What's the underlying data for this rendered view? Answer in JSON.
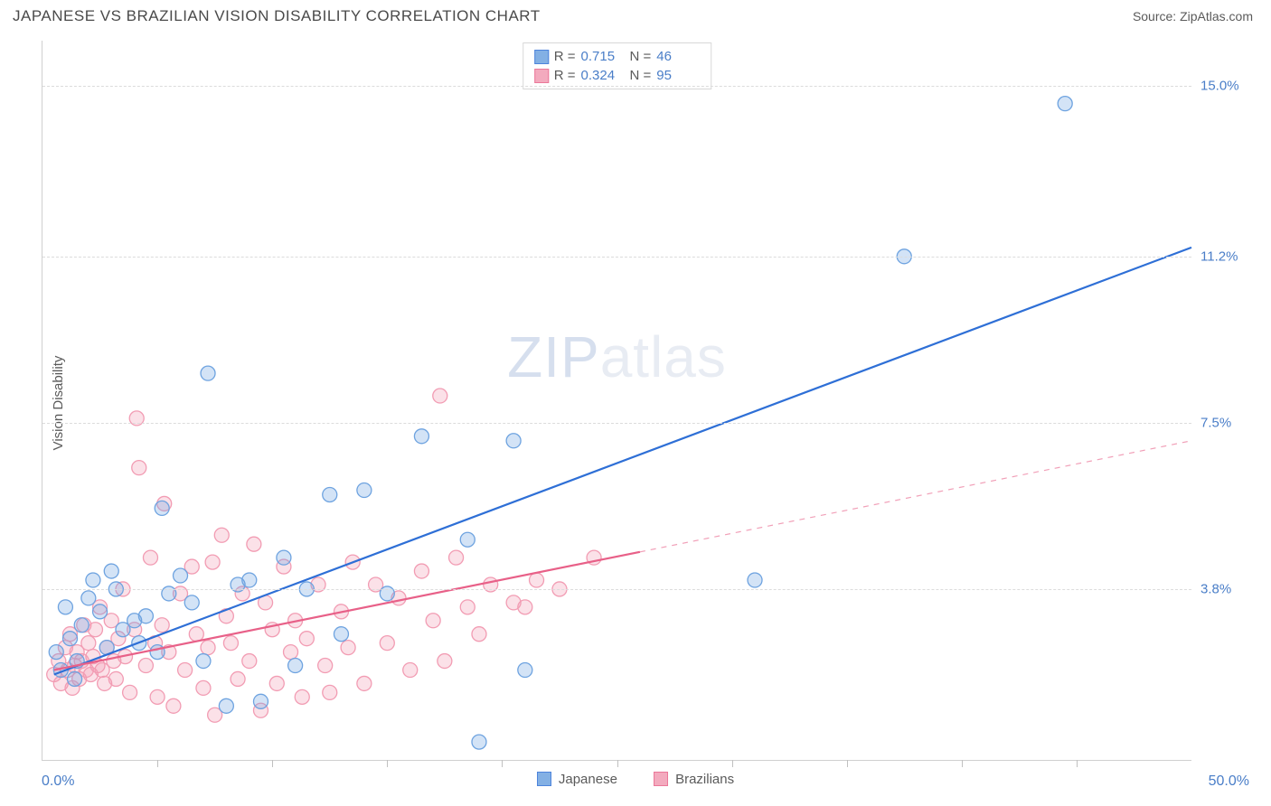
{
  "header": {
    "title": "JAPANESE VS BRAZILIAN VISION DISABILITY CORRELATION CHART",
    "source_prefix": "Source: ",
    "source_name": "ZipAtlas.com"
  },
  "watermark": {
    "part1": "ZIP",
    "part2": "atlas"
  },
  "chart": {
    "type": "scatter",
    "ylabel": "Vision Disability",
    "xlim": [
      0,
      50
    ],
    "ylim": [
      0,
      16
    ],
    "x_min_label": "0.0%",
    "x_max_label": "50.0%",
    "xtick_positions": [
      5,
      10,
      15,
      20,
      25,
      30,
      35,
      40,
      45
    ],
    "yticks": [
      {
        "value": 3.8,
        "label": "3.8%"
      },
      {
        "value": 7.5,
        "label": "7.5%"
      },
      {
        "value": 11.2,
        "label": "11.2%"
      },
      {
        "value": 15.0,
        "label": "15.0%"
      }
    ],
    "grid_color": "#dcdcdc",
    "axis_color": "#d0d0d0",
    "background_color": "#ffffff",
    "marker_radius": 8,
    "marker_fill_opacity": 0.3,
    "marker_stroke_width": 1.3,
    "trend_line_width": 2.2,
    "series": [
      {
        "id": "japanese",
        "label": "Japanese",
        "color": "#6ea3e0",
        "line_color": "#2e6fd6",
        "R": "0.715",
        "N": "46",
        "trend": {
          "x1": 0.5,
          "y1": 1.9,
          "x2": 50,
          "y2": 11.4,
          "solid_until_x": 50
        },
        "points": [
          [
            0.6,
            2.4
          ],
          [
            0.8,
            2.0
          ],
          [
            1.0,
            3.4
          ],
          [
            1.2,
            2.7
          ],
          [
            1.4,
            1.8
          ],
          [
            1.5,
            2.2
          ],
          [
            1.7,
            3.0
          ],
          [
            2.0,
            3.6
          ],
          [
            2.2,
            4.0
          ],
          [
            2.5,
            3.3
          ],
          [
            2.8,
            2.5
          ],
          [
            3.0,
            4.2
          ],
          [
            3.2,
            3.8
          ],
          [
            3.5,
            2.9
          ],
          [
            4.0,
            3.1
          ],
          [
            4.2,
            2.6
          ],
          [
            4.5,
            3.2
          ],
          [
            5.0,
            2.4
          ],
          [
            5.2,
            5.6
          ],
          [
            5.5,
            3.7
          ],
          [
            6.0,
            4.1
          ],
          [
            6.5,
            3.5
          ],
          [
            7.0,
            2.2
          ],
          [
            7.2,
            8.6
          ],
          [
            8.0,
            1.2
          ],
          [
            8.5,
            3.9
          ],
          [
            9.0,
            4.0
          ],
          [
            9.5,
            1.3
          ],
          [
            10.5,
            4.5
          ],
          [
            11.0,
            2.1
          ],
          [
            11.5,
            3.8
          ],
          [
            12.5,
            5.9
          ],
          [
            13.0,
            2.8
          ],
          [
            14.0,
            6.0
          ],
          [
            15.0,
            3.7
          ],
          [
            16.5,
            7.2
          ],
          [
            18.5,
            4.9
          ],
          [
            19.0,
            0.4
          ],
          [
            20.5,
            7.1
          ],
          [
            21.0,
            2.0
          ],
          [
            31.0,
            4.0
          ],
          [
            37.5,
            11.2
          ],
          [
            44.5,
            14.6
          ]
        ]
      },
      {
        "id": "brazilians",
        "label": "Brazilians",
        "color": "#f29cb3",
        "line_color": "#e86088",
        "R": "0.324",
        "N": "95",
        "trend": {
          "x1": 0.5,
          "y1": 2.0,
          "x2": 50,
          "y2": 7.1,
          "solid_until_x": 26
        },
        "points": [
          [
            0.5,
            1.9
          ],
          [
            0.7,
            2.2
          ],
          [
            0.8,
            1.7
          ],
          [
            1.0,
            2.5
          ],
          [
            1.1,
            2.0
          ],
          [
            1.2,
            2.8
          ],
          [
            1.3,
            1.6
          ],
          [
            1.4,
            2.1
          ],
          [
            1.5,
            2.4
          ],
          [
            1.6,
            1.8
          ],
          [
            1.7,
            2.2
          ],
          [
            1.8,
            3.0
          ],
          [
            1.9,
            2.0
          ],
          [
            2.0,
            2.6
          ],
          [
            2.1,
            1.9
          ],
          [
            2.2,
            2.3
          ],
          [
            2.3,
            2.9
          ],
          [
            2.4,
            2.1
          ],
          [
            2.5,
            3.4
          ],
          [
            2.6,
            2.0
          ],
          [
            2.7,
            1.7
          ],
          [
            2.8,
            2.5
          ],
          [
            3.0,
            3.1
          ],
          [
            3.1,
            2.2
          ],
          [
            3.2,
            1.8
          ],
          [
            3.3,
            2.7
          ],
          [
            3.5,
            3.8
          ],
          [
            3.6,
            2.3
          ],
          [
            3.8,
            1.5
          ],
          [
            4.0,
            2.9
          ],
          [
            4.1,
            7.6
          ],
          [
            4.2,
            6.5
          ],
          [
            4.5,
            2.1
          ],
          [
            4.7,
            4.5
          ],
          [
            4.9,
            2.6
          ],
          [
            5.0,
            1.4
          ],
          [
            5.2,
            3.0
          ],
          [
            5.3,
            5.7
          ],
          [
            5.5,
            2.4
          ],
          [
            5.7,
            1.2
          ],
          [
            6.0,
            3.7
          ],
          [
            6.2,
            2.0
          ],
          [
            6.5,
            4.3
          ],
          [
            6.7,
            2.8
          ],
          [
            7.0,
            1.6
          ],
          [
            7.2,
            2.5
          ],
          [
            7.4,
            4.4
          ],
          [
            7.5,
            1.0
          ],
          [
            7.8,
            5.0
          ],
          [
            8.0,
            3.2
          ],
          [
            8.2,
            2.6
          ],
          [
            8.5,
            1.8
          ],
          [
            8.7,
            3.7
          ],
          [
            9.0,
            2.2
          ],
          [
            9.2,
            4.8
          ],
          [
            9.5,
            1.1
          ],
          [
            9.7,
            3.5
          ],
          [
            10.0,
            2.9
          ],
          [
            10.2,
            1.7
          ],
          [
            10.5,
            4.3
          ],
          [
            10.8,
            2.4
          ],
          [
            11.0,
            3.1
          ],
          [
            11.3,
            1.4
          ],
          [
            11.5,
            2.7
          ],
          [
            12.0,
            3.9
          ],
          [
            12.3,
            2.1
          ],
          [
            12.5,
            1.5
          ],
          [
            13.0,
            3.3
          ],
          [
            13.3,
            2.5
          ],
          [
            13.5,
            4.4
          ],
          [
            14.0,
            1.7
          ],
          [
            14.5,
            3.9
          ],
          [
            15.0,
            2.6
          ],
          [
            15.5,
            3.6
          ],
          [
            16.0,
            2.0
          ],
          [
            16.5,
            4.2
          ],
          [
            17.0,
            3.1
          ],
          [
            17.3,
            8.1
          ],
          [
            17.5,
            2.2
          ],
          [
            18.0,
            4.5
          ],
          [
            18.5,
            3.4
          ],
          [
            19.0,
            2.8
          ],
          [
            19.5,
            3.9
          ],
          [
            20.5,
            3.5
          ],
          [
            21.0,
            3.4
          ],
          [
            21.5,
            4.0
          ],
          [
            22.5,
            3.8
          ],
          [
            24.0,
            4.5
          ]
        ]
      }
    ],
    "bottom_legend": [
      {
        "swatch": "#6ea3e0",
        "label": "Japanese"
      },
      {
        "swatch": "#f29cb3",
        "label": "Brazilians"
      }
    ]
  }
}
